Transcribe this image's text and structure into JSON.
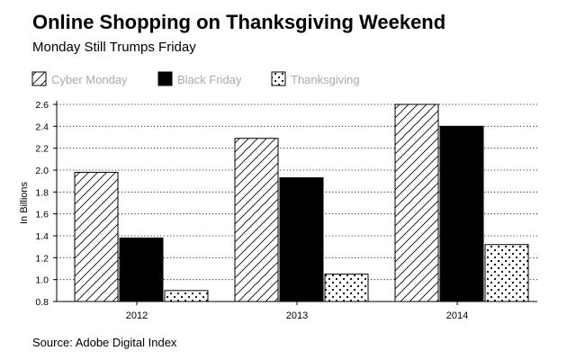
{
  "header": {
    "title": "Online Shopping on Thanksgiving Weekend",
    "subtitle": "Monday Still Trumps Friday"
  },
  "footer": {
    "source": "Source: Adobe Digital Index"
  },
  "chart_data": {
    "type": "bar",
    "title": "Online Shopping on Thanksgiving Weekend",
    "subtitle": "Monday Still Trumps Friday",
    "xlabel": "",
    "ylabel": "In Billions",
    "categories": [
      "2012",
      "2013",
      "2014"
    ],
    "series": [
      {
        "name": "Cyber Monday",
        "values": [
          1.98,
          2.29,
          2.6
        ],
        "pattern": "diagonal-hatch"
      },
      {
        "name": "Black Friday",
        "values": [
          1.38,
          1.93,
          2.4
        ],
        "pattern": "solid-black"
      },
      {
        "name": "Thanksgiving",
        "values": [
          0.9,
          1.05,
          1.32
        ],
        "pattern": "dots"
      }
    ],
    "ylim": [
      0.8,
      2.6
    ],
    "yticks": [
      "0.8",
      "1.0",
      "1.2",
      "1.4",
      "1.6",
      "1.8",
      "2.0",
      "2.2",
      "2.4",
      "2.6"
    ],
    "grid": true,
    "grid_style": "dotted horizontal",
    "legend_position": "top-left",
    "legend_text_color": "#aaaaaa",
    "bar_stroke_color": "#000000"
  }
}
